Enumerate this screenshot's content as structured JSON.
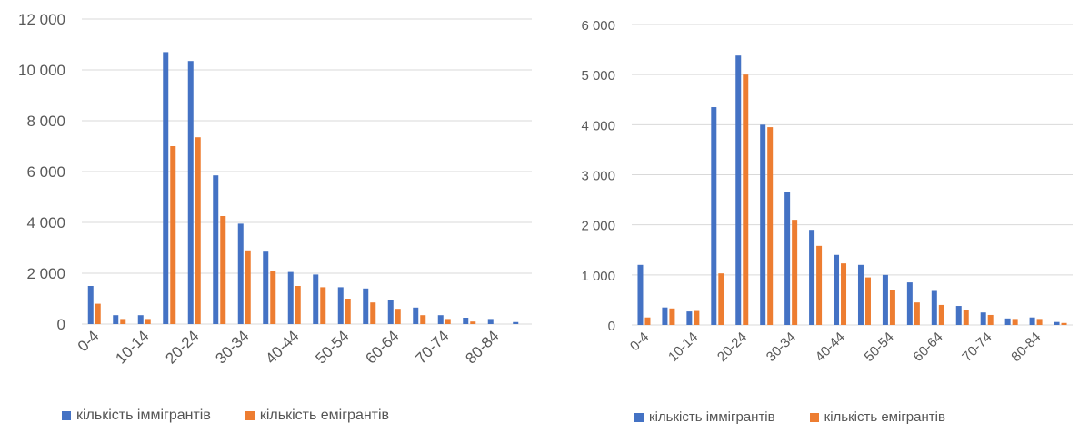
{
  "colors": {
    "immigrants": "#4472C4",
    "emigrants": "#ED7D31",
    "grid": "#d9d9d9",
    "text": "#595959"
  },
  "chart_data": [
    {
      "type": "bar",
      "categories": [
        "0-4",
        "5-9",
        "10-14",
        "15-19",
        "20-24",
        "25-29",
        "30-34",
        "35-39",
        "40-44",
        "45-49",
        "50-54",
        "55-59",
        "60-64",
        "65-69",
        "70-74",
        "75-79",
        "80-84",
        "85+"
      ],
      "tick_labels_shown": [
        "0-4",
        "10-14",
        "20-24",
        "30-34",
        "40-44",
        "50-54",
        "60-64",
        "70-74",
        "80-84"
      ],
      "series": [
        {
          "name": "кількість іммігрантів",
          "values": [
            1500,
            350,
            350,
            10700,
            10350,
            5850,
            3950,
            2850,
            2050,
            1950,
            1450,
            1400,
            950,
            650,
            350,
            250,
            200,
            80
          ]
        },
        {
          "name": "кількість емігрантів",
          "values": [
            800,
            200,
            200,
            7000,
            7350,
            4250,
            2900,
            2100,
            1500,
            1450,
            1000,
            850,
            600,
            350,
            200,
            100,
            0,
            0
          ]
        }
      ],
      "ylim": [
        0,
        12000
      ],
      "yticks": [
        0,
        2000,
        4000,
        6000,
        8000,
        10000,
        12000
      ],
      "ytick_labels": [
        "0",
        "2 000",
        "4 000",
        "6 000",
        "8 000",
        "10 000",
        "12 000"
      ],
      "grid": true,
      "legend": "bottom"
    },
    {
      "type": "bar",
      "categories": [
        "0-4",
        "5-9",
        "10-14",
        "15-19",
        "20-24",
        "25-29",
        "30-34",
        "35-39",
        "40-44",
        "45-49",
        "50-54",
        "55-59",
        "60-64",
        "65-69",
        "70-74",
        "75-79",
        "80-84",
        "85+"
      ],
      "tick_labels_shown": [
        "0-4",
        "10-14",
        "20-24",
        "30-34",
        "40-44",
        "50-54",
        "60-64",
        "70-74",
        "80-84"
      ],
      "series": [
        {
          "name": "кількість іммігрантів",
          "values": [
            1200,
            350,
            270,
            4350,
            5380,
            4000,
            2650,
            1900,
            1400,
            1200,
            1000,
            850,
            680,
            380,
            250,
            130,
            150,
            60
          ]
        },
        {
          "name": "кількість емігрантів",
          "values": [
            150,
            330,
            280,
            1030,
            5000,
            3950,
            2100,
            1580,
            1230,
            950,
            700,
            450,
            400,
            300,
            200,
            120,
            120,
            40
          ]
        }
      ],
      "ylim": [
        0,
        6000
      ],
      "yticks": [
        0,
        1000,
        2000,
        3000,
        4000,
        5000,
        6000
      ],
      "ytick_labels": [
        "0",
        "1 000",
        "2 000",
        "3 000",
        "4 000",
        "5 000",
        "6 000"
      ],
      "grid": true,
      "legend": "bottom"
    }
  ]
}
